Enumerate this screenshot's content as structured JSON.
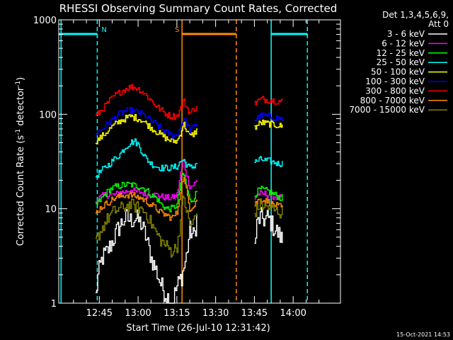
{
  "chart_data": {
    "type": "line",
    "title": "RHESSI Observing Summary Count Rates, Corrected",
    "xlabel": "Start Time (26-Jul-10 12:31:42)",
    "ylabel_main": "Corrected Count Rate (s",
    "ylabel_sup1": "-1",
    "ylabel_mid": " detector",
    "ylabel_sup2": "-1",
    "ylabel_end": ")",
    "yscale": "log",
    "ylim": [
      1,
      1000
    ],
    "xlim_minutes": [
      -15.7,
      93.3
    ],
    "yticks": [
      {
        "value": 1,
        "label": "1"
      },
      {
        "value": 10,
        "label": "10"
      },
      {
        "value": 100,
        "label": "100"
      },
      {
        "value": 1000,
        "label": "1000"
      }
    ],
    "xticks": [
      {
        "value": 0,
        "label": "12:45"
      },
      {
        "value": 15,
        "label": "13:00"
      },
      {
        "value": 30,
        "label": "13:15"
      },
      {
        "value": 45,
        "label": "13:30"
      },
      {
        "value": 60,
        "label": "13:45"
      },
      {
        "value": 75,
        "label": "14:00"
      }
    ],
    "legend": {
      "header_line1": "Det 1,3,4,5,6,9,",
      "header_line2": "Att 0",
      "placement": "right"
    },
    "series": [
      {
        "name": "3 - 6 keV",
        "color": "#ffffff",
        "segments": [
          {
            "t": [
              -1.5,
              -0.5,
              1,
              3,
              5,
              7,
              8.5,
              10,
              12,
              14,
              16,
              18,
              20,
              22,
              24,
              26,
              28,
              30,
              32,
              33.5,
              35,
              36.5,
              38
            ],
            "y": [
              1.2,
              2,
              3,
              3.5,
              4.5,
              6,
              7,
              8,
              7.5,
              8,
              7,
              5,
              3,
              2.2,
              1.5,
              1.2,
              1,
              1.5,
              2,
              3,
              6,
              5,
              9
            ]
          },
          {
            "t": [
              60,
              61,
              62,
              63,
              64,
              65,
              66,
              67,
              68,
              69,
              70,
              71
            ],
            "y": [
              4,
              7,
              8,
              8,
              7.5,
              8,
              7.5,
              6.5,
              6,
              5.5,
              5,
              4.5
            ]
          }
        ]
      },
      {
        "name": "6 - 12 keV",
        "color": "#ff00ff",
        "segments": [
          {
            "t": [
              -1.5,
              0,
              2,
              4,
              6,
              8,
              10,
              12,
              14,
              16,
              18,
              20,
              22,
              24,
              26,
              28,
              30,
              31.5,
              32.5,
              33.5,
              35,
              36.5,
              38
            ],
            "y": [
              12,
              13,
              14,
              14,
              14,
              15,
              15,
              16,
              15,
              15,
              14,
              14,
              14,
              13.5,
              13,
              13,
              14,
              25,
              33,
              24,
              17,
              18,
              20
            ]
          },
          {
            "t": [
              60,
              61,
              62,
              63,
              64,
              65,
              66,
              67,
              68,
              69,
              70,
              71
            ],
            "y": [
              13,
              14,
              14.5,
              14,
              14.5,
              14,
              14,
              13.5,
              13.5,
              13,
              13,
              13
            ]
          }
        ]
      },
      {
        "name": "12 - 25 keV",
        "color": "#00ff00",
        "segments": [
          {
            "t": [
              -1.5,
              0,
              2,
              4,
              6,
              8,
              10,
              12,
              14,
              16,
              18,
              20,
              22,
              24,
              26,
              28,
              30,
              31.5,
              32.5,
              33.5,
              35,
              36.5,
              38
            ],
            "y": [
              11,
              12,
              14,
              16,
              17,
              17.5,
              18,
              18,
              17.5,
              17,
              16,
              14,
              13,
              11,
              10,
              10,
              11,
              20,
              24,
              18,
              12,
              13,
              16
            ]
          },
          {
            "t": [
              60,
              61,
              62,
              63,
              64,
              65,
              66,
              67,
              68,
              69,
              70,
              71
            ],
            "y": [
              14,
              15,
              16,
              16,
              15.5,
              15.5,
              15,
              14.5,
              14,
              13.5,
              13,
              13
            ]
          }
        ]
      },
      {
        "name": "25 - 50 keV",
        "color": "#00ffff",
        "segments": [
          {
            "t": [
              -1.5,
              0,
              2,
              4,
              6,
              8,
              10,
              12,
              13.5,
              15,
              16.5,
              18,
              20,
              22,
              24,
              26,
              28,
              30,
              31.5,
              32.5,
              33.5,
              35,
              36.5,
              38
            ],
            "y": [
              22,
              24,
              27,
              30,
              34,
              38,
              45,
              50,
              52,
              48,
              40,
              34,
              30,
              28,
              27,
              27,
              27,
              28,
              32,
              33,
              30,
              27,
              28,
              32
            ]
          },
          {
            "t": [
              60,
              61,
              62,
              63,
              64,
              65,
              66,
              67,
              68,
              69,
              70,
              71
            ],
            "y": [
              31,
              32,
              33,
              33,
              32.5,
              32,
              32,
              31,
              31,
              30,
              30,
              30
            ]
          }
        ]
      },
      {
        "name": "50 - 100 keV",
        "color": "#ffff00",
        "segments": [
          {
            "t": [
              -1.5,
              0,
              2,
              4,
              6,
              8,
              10,
              12,
              14,
              16,
              18,
              20,
              22,
              24,
              26,
              28,
              30,
              31.5,
              32.5,
              33.5,
              35,
              36.5,
              38
            ],
            "y": [
              52,
              55,
              62,
              70,
              78,
              85,
              90,
              95,
              92,
              88,
              80,
              72,
              66,
              60,
              55,
              52,
              52,
              65,
              80,
              70,
              58,
              62,
              70
            ]
          },
          {
            "t": [
              60,
              61,
              62,
              63,
              64,
              65,
              66,
              67,
              68,
              69,
              70,
              71
            ],
            "y": [
              72,
              76,
              80,
              82,
              80,
              80,
              79,
              78,
              77,
              76,
              75,
              74
            ]
          }
        ]
      },
      {
        "name": "100 - 300 keV",
        "color": "#0000ff",
        "segments": [
          {
            "t": [
              -1.5,
              0,
              2,
              4,
              6,
              8,
              10,
              12,
              14,
              16,
              18,
              20,
              22,
              24,
              26,
              28,
              30,
              31.5,
              32.5,
              33.5,
              35,
              36.5,
              38
            ],
            "y": [
              62,
              66,
              74,
              84,
              93,
              102,
              108,
              110,
              107,
              102,
              95,
              85,
              78,
              70,
              64,
              60,
              60,
              75,
              92,
              80,
              68,
              73,
              82
            ]
          },
          {
            "t": [
              60,
              61,
              62,
              63,
              64,
              65,
              66,
              67,
              68,
              69,
              70,
              71
            ],
            "y": [
              87,
              91,
              95,
              97,
              96,
              95,
              94,
              93,
              92,
              91,
              90,
              89
            ]
          }
        ]
      },
      {
        "name": "300 - 800 keV",
        "color": "#ff0000",
        "segments": [
          {
            "t": [
              -1.5,
              0,
              2,
              4,
              6,
              8,
              10,
              12,
              14,
              16,
              18,
              20,
              22,
              24,
              26,
              28,
              30,
              31.5,
              32.5,
              33.5,
              35,
              36.5,
              38
            ],
            "y": [
              95,
              105,
              120,
              140,
              158,
              172,
              186,
              195,
              192,
              180,
              160,
              140,
              122,
              110,
              100,
              95,
              96,
              118,
              140,
              122,
              103,
              112,
              128
            ]
          },
          {
            "t": [
              60,
              61,
              62,
              63,
              64,
              65,
              66,
              67,
              68,
              69,
              70,
              71
            ],
            "y": [
              130,
              136,
              142,
              145,
              143,
              142,
              141,
              140,
              139,
              138,
              137,
              136
            ]
          }
        ]
      },
      {
        "name": "800 - 7000 keV",
        "color": "#ff8c00",
        "segments": [
          {
            "t": [
              -1.5,
              0,
              2,
              4,
              6,
              8,
              10,
              12,
              14,
              16,
              18,
              20,
              22,
              24,
              26,
              28,
              30,
              31.5,
              32.5,
              33.5,
              35,
              36.5,
              38
            ],
            "y": [
              9,
              10,
              11,
              12,
              13,
              13.5,
              14,
              14,
              13.5,
              13,
              12,
              11,
              10,
              9,
              8.5,
              8,
              9,
              17,
              22,
              16,
              10,
              11,
              13
            ]
          },
          {
            "t": [
              60,
              61,
              62,
              63,
              64,
              65,
              66,
              67,
              68,
              69,
              70,
              71
            ],
            "y": [
              11,
              12,
              12.5,
              12.5,
              12,
              12,
              11.5,
              11,
              11,
              10.5,
              10.5,
              10
            ]
          }
        ]
      },
      {
        "name": "7000 - 15000 keV",
        "color": "#808000",
        "segments": [
          {
            "t": [
              -1.5,
              0,
              2,
              4,
              6,
              8,
              10,
              12,
              14,
              16,
              18,
              20,
              22,
              24,
              26,
              28,
              30,
              31.5,
              32.5,
              33.5,
              35,
              36.5,
              38
            ],
            "y": [
              4.5,
              5.5,
              7,
              8.5,
              9.5,
              10,
              10.5,
              11,
              10.5,
              10,
              9,
              7,
              5.5,
              4.5,
              4,
              3.5,
              4,
              8,
              14,
              10,
              6.5,
              7.5,
              9
            ]
          },
          {
            "t": [
              60,
              61,
              62,
              63,
              64,
              65,
              66,
              67,
              68,
              69,
              70,
              71
            ],
            "y": [
              9,
              10,
              11,
              11,
              10.5,
              10.5,
              10,
              10,
              9.5,
              9.5,
              9,
              9
            ]
          }
        ]
      }
    ],
    "flags": [
      {
        "label": "N",
        "color": "#00ffff",
        "t_start": -15.7,
        "t_end": -0.8
      },
      {
        "label": "S",
        "color": "#ff8c00",
        "t_start": 32,
        "t_end": 53
      },
      {
        "label": "",
        "color": "#00ffff",
        "t_start": 66.5,
        "t_end": 80.5
      }
    ],
    "vlines": [
      {
        "t": -14.8,
        "color": "#00ffff",
        "style": "solid"
      },
      {
        "t": -0.8,
        "color": "#00ffff",
        "style": "dashed"
      },
      {
        "t": 32,
        "color": "#ff8c00",
        "style": "solid"
      },
      {
        "t": 53,
        "color": "#ff8c00",
        "style": "dashed"
      },
      {
        "t": 66.5,
        "color": "#00ffff",
        "style": "solid"
      },
      {
        "t": 80.5,
        "color": "#00ffff",
        "style": "dashed"
      }
    ],
    "footer_timestamp": "15-Oct-2021 14:53"
  }
}
